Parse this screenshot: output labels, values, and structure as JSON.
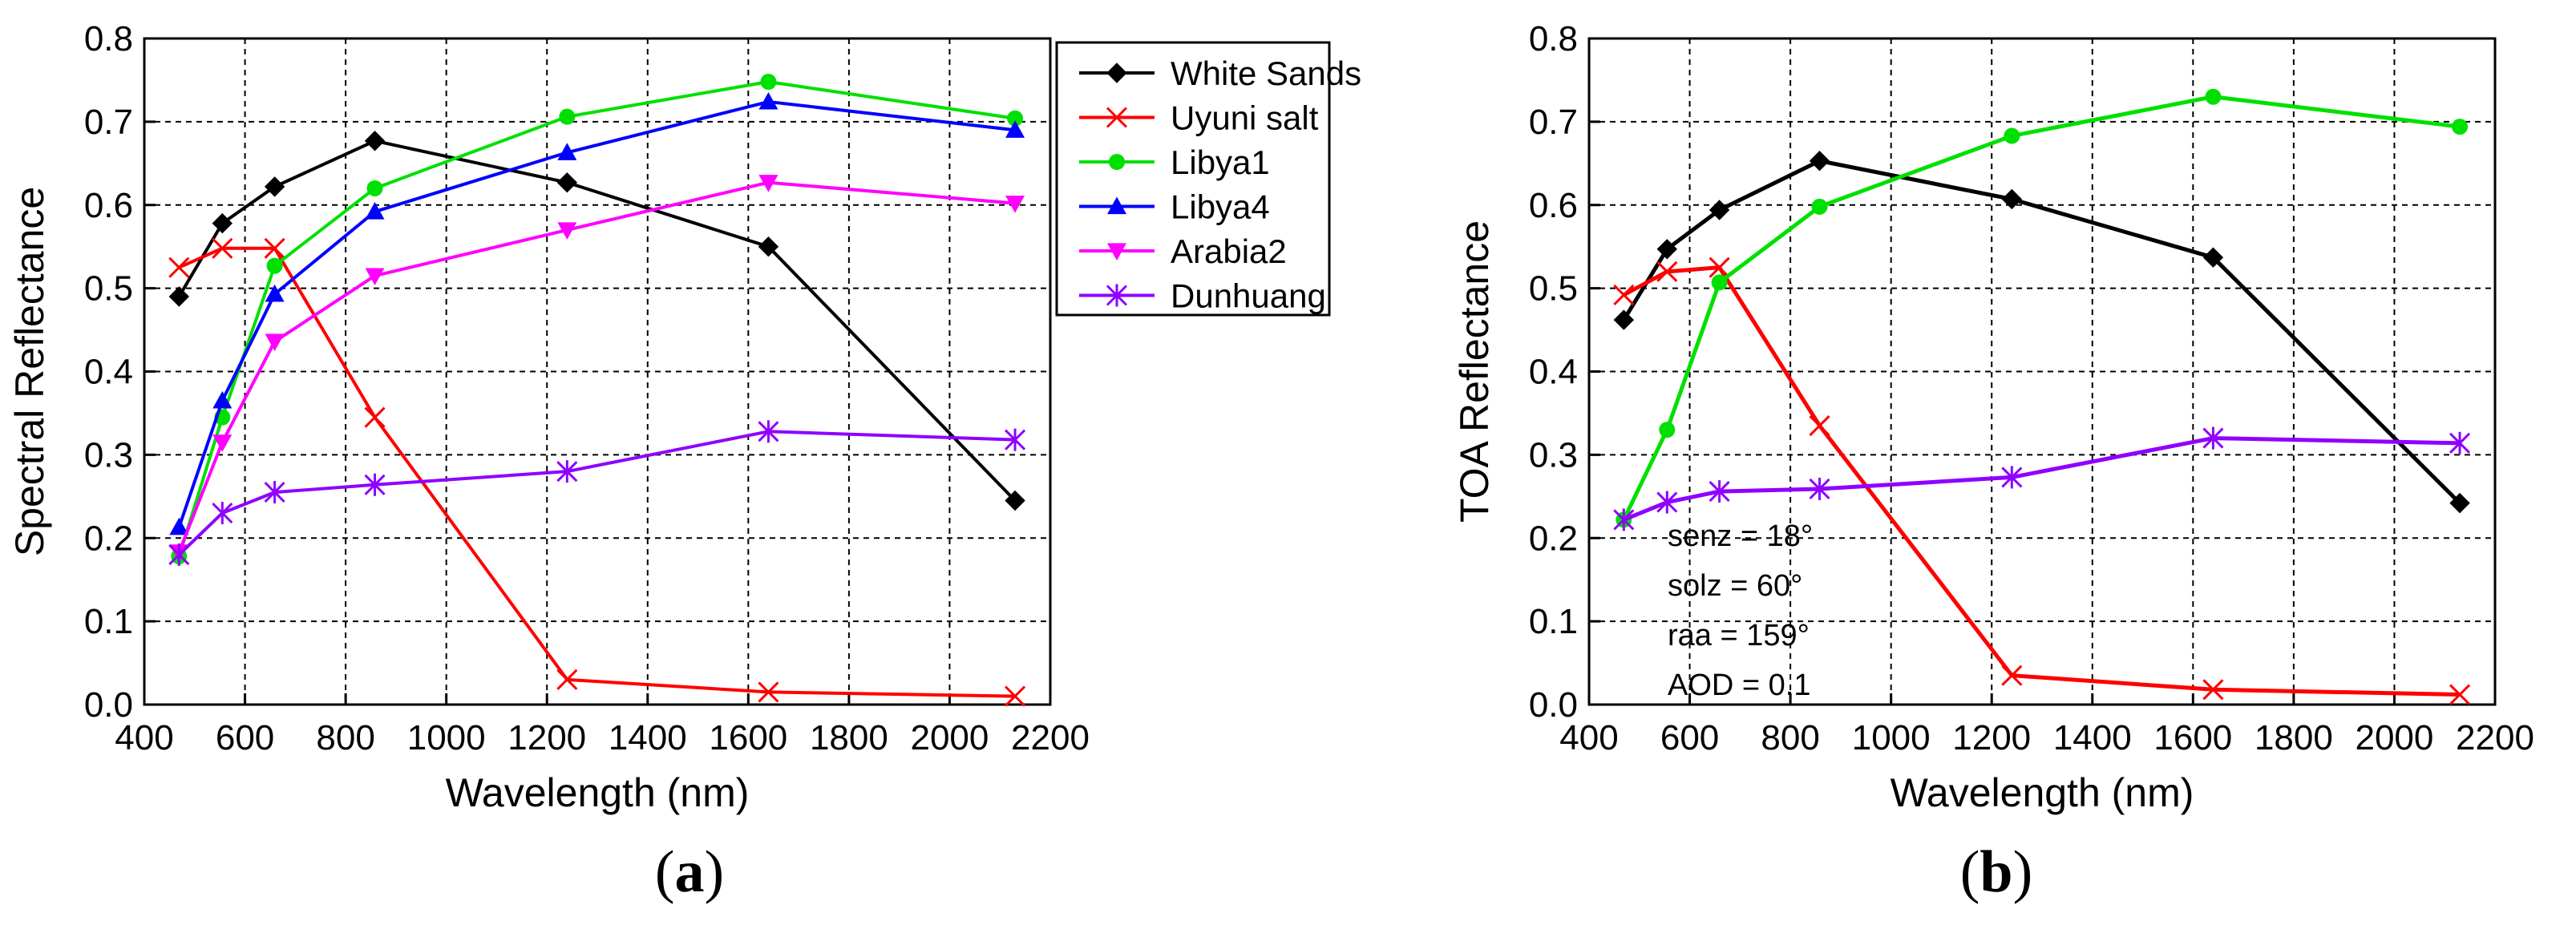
{
  "chart_data": [
    {
      "type": "line",
      "panel_label_open": "(",
      "panel_label_letter": "a",
      "panel_label_close": ")",
      "xlabel": "Wavelength (nm)",
      "ylabel": "Spectral Reflectance",
      "xlim": [
        400,
        2200
      ],
      "ylim": [
        0.0,
        0.8
      ],
      "xticks": [
        "400",
        "600",
        "800",
        "1000",
        "1200",
        "1400",
        "1600",
        "1800",
        "2000",
        "2200"
      ],
      "yticks": [
        "0.0",
        "0.1",
        "0.2",
        "0.3",
        "0.4",
        "0.5",
        "0.6",
        "0.7",
        "0.8"
      ],
      "grid": true,
      "legend_position": "outside-right",
      "series": [
        {
          "name": "White Sands",
          "color": "#000000",
          "marker": "diamond",
          "x": [
            469,
            555,
            659,
            858,
            1240,
            1640,
            2130
          ],
          "y": [
            0.49,
            0.578,
            0.622,
            0.677,
            0.627,
            0.55,
            0.245
          ]
        },
        {
          "name": "Uyuni salt",
          "color": "#ff0000",
          "marker": "x",
          "x": [
            469,
            555,
            659,
            858,
            1240,
            1640,
            2130
          ],
          "y": [
            0.525,
            0.548,
            0.548,
            0.345,
            0.03,
            0.015,
            0.01
          ]
        },
        {
          "name": "Libya1",
          "color": "#00e000",
          "marker": "circle",
          "x": [
            469,
            555,
            659,
            858,
            1240,
            1640,
            2130
          ],
          "y": [
            0.178,
            0.345,
            0.527,
            0.62,
            0.706,
            0.748,
            0.704
          ]
        },
        {
          "name": "Libya4",
          "color": "#0000ff",
          "marker": "triangle-up",
          "x": [
            469,
            555,
            659,
            858,
            1240,
            1640,
            2130
          ],
          "y": [
            0.213,
            0.365,
            0.493,
            0.592,
            0.663,
            0.724,
            0.69
          ]
        },
        {
          "name": "Arabia2",
          "color": "#ff00ff",
          "marker": "triangle-down",
          "x": [
            469,
            555,
            659,
            858,
            1240,
            1640,
            2130
          ],
          "y": [
            0.183,
            0.315,
            0.436,
            0.515,
            0.57,
            0.627,
            0.602
          ]
        },
        {
          "name": "Dunhuang",
          "color": "#8f00ff",
          "marker": "asterisk",
          "x": [
            469,
            555,
            659,
            858,
            1240,
            1640,
            2130
          ],
          "y": [
            0.18,
            0.23,
            0.255,
            0.264,
            0.28,
            0.328,
            0.318
          ]
        }
      ]
    },
    {
      "type": "line",
      "panel_label_open": "(",
      "panel_label_letter": "b",
      "panel_label_close": ")",
      "xlabel": "Wavelength (nm)",
      "ylabel": "TOA Reflectance",
      "xlim": [
        400,
        2200
      ],
      "ylim": [
        0.0,
        0.8
      ],
      "xticks": [
        "400",
        "600",
        "800",
        "1000",
        "1200",
        "1400",
        "1600",
        "1800",
        "2000",
        "2200"
      ],
      "yticks": [
        "0.0",
        "0.1",
        "0.2",
        "0.3",
        "0.4",
        "0.5",
        "0.6",
        "0.7",
        "0.8"
      ],
      "grid": true,
      "annotations": [
        "senz = 18°",
        "solz = 60°",
        "raa  = 159°",
        "AOD = 0.1"
      ],
      "series": [
        {
          "name": "White Sands",
          "color": "#000000",
          "marker": "diamond",
          "x": [
            469,
            555,
            659,
            858,
            1240,
            1640,
            2130
          ],
          "y": [
            0.462,
            0.547,
            0.594,
            0.653,
            0.607,
            0.537,
            0.242
          ]
        },
        {
          "name": "Uyuni salt",
          "color": "#ff0000",
          "marker": "x",
          "x": [
            469,
            555,
            659,
            858,
            1240,
            1640,
            2130
          ],
          "y": [
            0.492,
            0.52,
            0.525,
            0.335,
            0.035,
            0.018,
            0.012
          ]
        },
        {
          "name": "Libya1",
          "color": "#00e000",
          "marker": "circle",
          "x": [
            469,
            555,
            659,
            858,
            1240,
            1640,
            2130
          ],
          "y": [
            0.222,
            0.33,
            0.507,
            0.598,
            0.683,
            0.73,
            0.694
          ]
        },
        {
          "name": "Dunhuang",
          "color": "#8f00ff",
          "marker": "asterisk",
          "x": [
            469,
            555,
            659,
            858,
            1240,
            1640,
            2130
          ],
          "y": [
            0.222,
            0.243,
            0.256,
            0.259,
            0.273,
            0.32,
            0.314
          ]
        }
      ]
    }
  ]
}
